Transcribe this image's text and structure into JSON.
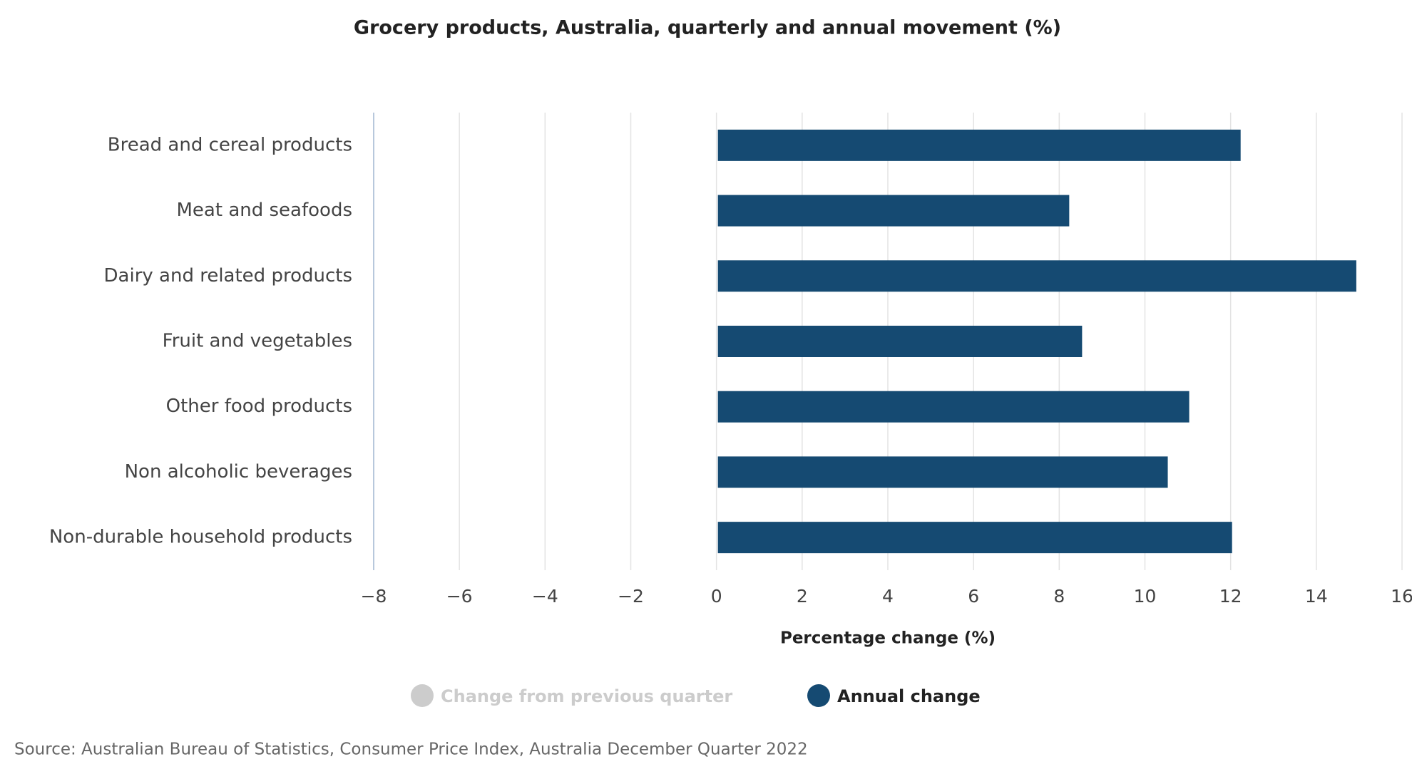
{
  "chart_data": {
    "type": "barh",
    "title": "Grocery products, Australia, quarterly and annual movement (%)",
    "categories": [
      "Bread and cereal products",
      "Meat and seafoods",
      "Dairy and related products",
      "Fruit and vegetables",
      "Other food products",
      "Non alcoholic beverages",
      "Non-durable household products"
    ],
    "series": [
      {
        "name": "Change from previous quarter",
        "color": "#cccccc",
        "visible": false,
        "values": [
          null,
          null,
          null,
          null,
          null,
          null,
          null
        ]
      },
      {
        "name": "Annual change",
        "color": "#154a72",
        "visible": true,
        "values": [
          12.2,
          8.2,
          14.9,
          8.5,
          11.0,
          10.5,
          12.0
        ]
      }
    ],
    "xlim": [
      -8,
      16
    ],
    "xticks": [
      {
        "value": -8,
        "label": "−8"
      },
      {
        "value": -6,
        "label": "−6"
      },
      {
        "value": -4,
        "label": "−4"
      },
      {
        "value": -2,
        "label": "−2"
      },
      0,
      2,
      4,
      6,
      8,
      10,
      12,
      14,
      16
    ],
    "xlabel": "Percentage change (%)",
    "grid": true,
    "legend": "bottom",
    "source": "Source: Australian Bureau of Statistics, Consumer Price Index, Australia December Quarter 2022"
  }
}
